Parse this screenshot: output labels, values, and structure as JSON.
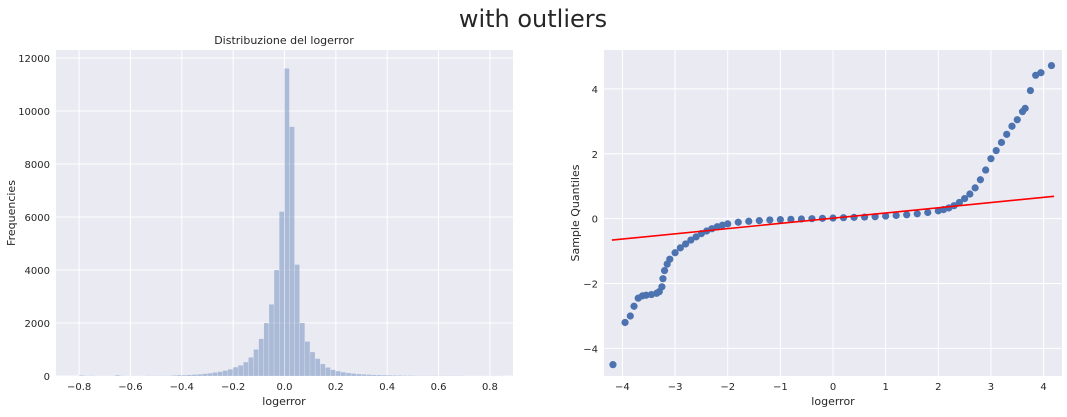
{
  "figure": {
    "suptitle": "with outliers"
  },
  "colors": {
    "plot_bg": "#eaeaf2",
    "grid": "#ffffff",
    "hist_fill": "#4c72b0",
    "points": "#4c72b0",
    "fit_line": "#ff0000"
  },
  "chart_data": [
    {
      "type": "bar",
      "title": "Distribuzione del logerror",
      "xlabel": "logerror",
      "ylabel": "Frequencies",
      "xlim": [
        -0.89,
        0.89
      ],
      "ylim": [
        0,
        12300
      ],
      "xticks": [
        -0.8,
        -0.6,
        -0.4,
        -0.2,
        0.0,
        0.2,
        0.4,
        0.6,
        0.8
      ],
      "xtick_labels": [
        "−0.8",
        "−0.6",
        "−0.4",
        "−0.2",
        "0.0",
        "0.2",
        "0.4",
        "0.6",
        "0.8"
      ],
      "yticks": [
        0,
        2000,
        4000,
        6000,
        8000,
        10000,
        12000
      ],
      "ytick_labels": [
        "0",
        "2000",
        "4000",
        "6000",
        "8000",
        "10000",
        "12000"
      ],
      "grid": true,
      "bin_width": 0.02,
      "bin_start": -0.8,
      "values": [
        20,
        10,
        10,
        5,
        5,
        5,
        5,
        25,
        10,
        5,
        5,
        5,
        5,
        10,
        10,
        10,
        10,
        10,
        20,
        30,
        30,
        40,
        50,
        60,
        80,
        100,
        130,
        160,
        200,
        250,
        330,
        400,
        520,
        700,
        1000,
        1400,
        2000,
        2700,
        4000,
        6200,
        11600,
        9400,
        4200,
        2000,
        1300,
        900,
        650,
        450,
        320,
        230,
        180,
        140,
        110,
        90,
        70,
        60,
        50,
        40,
        35,
        30,
        25,
        20,
        20,
        15,
        15,
        12,
        10,
        10,
        10,
        10,
        10,
        10,
        10,
        10,
        10,
        5,
        5,
        5,
        5,
        5,
        5,
        5,
        5
      ]
    },
    {
      "type": "scatter",
      "xlabel": "logerror",
      "ylabel": "Sample Quantiles",
      "xlim": [
        -4.35,
        4.35
      ],
      "ylim": [
        -4.85,
        5.2
      ],
      "xticks": [
        -4,
        -3,
        -2,
        -1,
        0,
        1,
        2,
        3,
        4
      ],
      "xtick_labels": [
        "−4",
        "−3",
        "−2",
        "−1",
        "0",
        "1",
        "2",
        "3",
        "4"
      ],
      "yticks": [
        -4,
        -2,
        0,
        2,
        4
      ],
      "ytick_labels": [
        "−4",
        "−2",
        "0",
        "2",
        "4"
      ],
      "grid": true,
      "series": [
        {
          "points": [
            [
              -4.18,
              -4.5
            ],
            [
              -3.95,
              -3.2
            ],
            [
              -3.85,
              -3.0
            ],
            [
              -3.78,
              -2.7
            ],
            [
              -3.7,
              -2.45
            ],
            [
              -3.62,
              -2.38
            ],
            [
              -3.55,
              -2.36
            ],
            [
              -3.45,
              -2.34
            ],
            [
              -3.35,
              -2.3
            ],
            [
              -3.3,
              -2.25
            ],
            [
              -3.25,
              -2.1
            ],
            [
              -3.23,
              -1.85
            ],
            [
              -3.2,
              -1.6
            ],
            [
              -3.15,
              -1.4
            ],
            [
              -3.1,
              -1.25
            ],
            [
              -3.0,
              -1.05
            ],
            [
              -2.9,
              -0.9
            ],
            [
              -2.8,
              -0.78
            ],
            [
              -2.7,
              -0.66
            ],
            [
              -2.6,
              -0.56
            ],
            [
              -2.5,
              -0.46
            ],
            [
              -2.4,
              -0.38
            ],
            [
              -2.3,
              -0.31
            ],
            [
              -2.2,
              -0.25
            ],
            [
              -2.1,
              -0.2
            ],
            [
              -2.0,
              -0.16
            ],
            [
              -1.8,
              -0.11
            ],
            [
              -1.6,
              -0.08
            ],
            [
              -1.4,
              -0.06
            ],
            [
              -1.2,
              -0.04
            ],
            [
              -1.0,
              -0.03
            ],
            [
              -0.8,
              -0.02
            ],
            [
              -0.6,
              -0.01
            ],
            [
              -0.4,
              0.0
            ],
            [
              -0.2,
              0.01
            ],
            [
              0.0,
              0.02
            ],
            [
              0.2,
              0.03
            ],
            [
              0.4,
              0.04
            ],
            [
              0.6,
              0.05
            ],
            [
              0.8,
              0.06
            ],
            [
              1.0,
              0.08
            ],
            [
              1.2,
              0.1
            ],
            [
              1.4,
              0.12
            ],
            [
              1.6,
              0.15
            ],
            [
              1.8,
              0.19
            ],
            [
              2.0,
              0.24
            ],
            [
              2.1,
              0.28
            ],
            [
              2.2,
              0.33
            ],
            [
              2.3,
              0.4
            ],
            [
              2.4,
              0.5
            ],
            [
              2.5,
              0.62
            ],
            [
              2.6,
              0.76
            ],
            [
              2.7,
              0.95
            ],
            [
              2.8,
              1.2
            ],
            [
              2.9,
              1.5
            ],
            [
              3.0,
              1.85
            ],
            [
              3.1,
              2.1
            ],
            [
              3.2,
              2.35
            ],
            [
              3.3,
              2.6
            ],
            [
              3.4,
              2.85
            ],
            [
              3.5,
              3.05
            ],
            [
              3.6,
              3.3
            ],
            [
              3.65,
              3.4
            ],
            [
              3.75,
              3.95
            ],
            [
              3.85,
              4.42
            ],
            [
              3.95,
              4.5
            ],
            [
              4.15,
              4.72
            ]
          ]
        }
      ],
      "fit_line": {
        "x": [
          -4.2,
          4.2
        ],
        "y": [
          -0.66,
          0.69
        ]
      }
    }
  ]
}
